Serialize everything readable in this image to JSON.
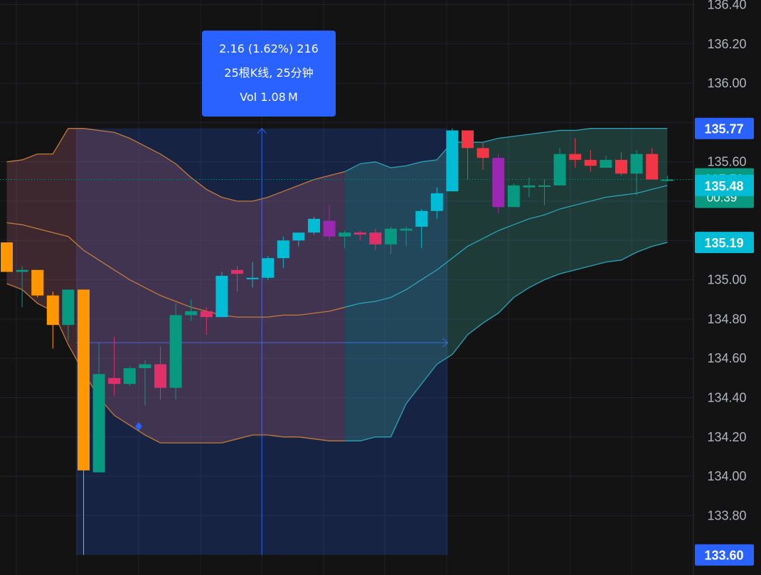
{
  "measure": {
    "change_text": "2.16 (1.62%) 216",
    "bars_text": "25根K线, 25分钟",
    "volume_text": "Vol 1.08 M"
  },
  "price_scale": {
    "ticks": [
      "136.40",
      "136.20",
      "136.00",
      "135.60",
      "135.00",
      "134.80",
      "134.60",
      "134.40",
      "134.20",
      "134.00",
      "133.80"
    ],
    "labels": [
      {
        "text": "135.77",
        "color": "#2962ff"
      },
      {
        "text": "135.51",
        "sub": "00:39",
        "color": "#089981"
      },
      {
        "text": "135.48",
        "color": "#00bcd4"
      },
      {
        "text": "135.19",
        "color": "#00bcd4"
      },
      {
        "text": "133.60",
        "color": "#2962ff"
      }
    ]
  },
  "colors": {
    "background": "#131313",
    "up": "#089981",
    "down": "#f23645",
    "measure_fill": "#2962ff",
    "band_warm": "#c27a3a",
    "band_cool": "#2aa3b8"
  },
  "chart_data": {
    "type": "candlestick",
    "y_range": [
      133.52,
      136.43
    ],
    "candles": [
      {
        "o": 135.19,
        "h": 135.19,
        "l": 135.04,
        "c": 135.04,
        "color": "#ff9800"
      },
      {
        "o": 135.04,
        "h": 135.07,
        "l": 134.86,
        "c": 135.05,
        "color": "#089981"
      },
      {
        "o": 135.05,
        "h": 135.05,
        "l": 134.91,
        "c": 134.92,
        "color": "#ff9800"
      },
      {
        "o": 134.92,
        "h": 134.94,
        "l": 134.65,
        "c": 134.77,
        "color": "#ff9800"
      },
      {
        "o": 134.77,
        "h": 134.93,
        "l": 134.69,
        "c": 134.95,
        "color": "#089981"
      },
      {
        "o": 134.95,
        "h": 134.95,
        "l": 133.6,
        "c": 134.03,
        "color": "#ff9800"
      },
      {
        "o": 134.02,
        "h": 134.68,
        "l": 134.02,
        "c": 134.52,
        "color": "#089981"
      },
      {
        "o": 134.5,
        "h": 134.71,
        "l": 134.41,
        "c": 134.47,
        "color": "#e0306a"
      },
      {
        "o": 134.47,
        "h": 134.56,
        "l": 134.46,
        "c": 134.55,
        "color": "#089981"
      },
      {
        "o": 134.55,
        "h": 134.59,
        "l": 134.36,
        "c": 134.57,
        "color": "#089981"
      },
      {
        "o": 134.57,
        "h": 134.66,
        "l": 134.39,
        "c": 134.45,
        "color": "#e0306a"
      },
      {
        "o": 134.45,
        "h": 134.88,
        "l": 134.39,
        "c": 134.82,
        "color": "#089981"
      },
      {
        "o": 134.82,
        "h": 134.9,
        "l": 134.79,
        "c": 134.84,
        "color": "#089981"
      },
      {
        "o": 134.84,
        "h": 134.86,
        "l": 134.72,
        "c": 134.81,
        "color": "#e0306a"
      },
      {
        "o": 134.81,
        "h": 135.04,
        "l": 134.81,
        "c": 135.02,
        "color": "#00bcd4"
      },
      {
        "o": 135.05,
        "h": 135.07,
        "l": 134.94,
        "c": 135.03,
        "color": "#e0306a"
      },
      {
        "o": 135.01,
        "h": 135.09,
        "l": 134.96,
        "c": 135.01,
        "color": "#00bcd4"
      },
      {
        "o": 135.01,
        "h": 135.12,
        "l": 135.0,
        "c": 135.11,
        "color": "#00bcd4"
      },
      {
        "o": 135.11,
        "h": 135.22,
        "l": 135.06,
        "c": 135.2,
        "color": "#00bcd4"
      },
      {
        "o": 135.2,
        "h": 135.24,
        "l": 135.17,
        "c": 135.24,
        "color": "#00bcd4"
      },
      {
        "o": 135.24,
        "h": 135.32,
        "l": 135.23,
        "c": 135.31,
        "color": "#00bcd4"
      },
      {
        "o": 135.3,
        "h": 135.38,
        "l": 135.2,
        "c": 135.22,
        "color": "#9c27b0"
      },
      {
        "o": 135.22,
        "h": 135.25,
        "l": 135.16,
        "c": 135.24,
        "color": "#089981"
      },
      {
        "o": 135.23,
        "h": 135.25,
        "l": 135.2,
        "c": 135.24,
        "color": "#e0306a"
      },
      {
        "o": 135.24,
        "h": 135.26,
        "l": 135.15,
        "c": 135.18,
        "color": "#e0306a"
      },
      {
        "o": 135.18,
        "h": 135.27,
        "l": 135.13,
        "c": 135.26,
        "color": "#089981"
      },
      {
        "o": 135.25,
        "h": 135.27,
        "l": 135.17,
        "c": 135.26,
        "color": "#089981"
      },
      {
        "o": 135.27,
        "h": 135.36,
        "l": 135.16,
        "c": 135.35,
        "color": "#00bcd4"
      },
      {
        "o": 135.35,
        "h": 135.47,
        "l": 135.31,
        "c": 135.44,
        "color": "#00bcd4"
      },
      {
        "o": 135.45,
        "h": 135.77,
        "l": 135.45,
        "c": 135.76,
        "color": "#00bcd4"
      },
      {
        "o": 135.76,
        "h": 135.76,
        "l": 135.51,
        "c": 135.67,
        "color": "#f23645"
      },
      {
        "o": 135.67,
        "h": 135.7,
        "l": 135.56,
        "c": 135.62,
        "color": "#f23645"
      },
      {
        "o": 135.62,
        "h": 135.64,
        "l": 135.34,
        "c": 135.37,
        "color": "#9c27b0"
      },
      {
        "o": 135.37,
        "h": 135.49,
        "l": 135.37,
        "c": 135.48,
        "color": "#089981"
      },
      {
        "o": 135.47,
        "h": 135.52,
        "l": 135.42,
        "c": 135.48,
        "color": "#089981"
      },
      {
        "o": 135.48,
        "h": 135.51,
        "l": 135.38,
        "c": 135.48,
        "color": "#089981"
      },
      {
        "o": 135.48,
        "h": 135.67,
        "l": 135.48,
        "c": 135.64,
        "color": "#089981"
      },
      {
        "o": 135.64,
        "h": 135.72,
        "l": 135.57,
        "c": 135.61,
        "color": "#f23645"
      },
      {
        "o": 135.61,
        "h": 135.66,
        "l": 135.55,
        "c": 135.58,
        "color": "#f23645"
      },
      {
        "o": 135.57,
        "h": 135.63,
        "l": 135.57,
        "c": 135.61,
        "color": "#089981"
      },
      {
        "o": 135.61,
        "h": 135.65,
        "l": 135.53,
        "c": 135.54,
        "color": "#f23645"
      },
      {
        "o": 135.54,
        "h": 135.66,
        "l": 135.43,
        "c": 135.64,
        "color": "#089981"
      },
      {
        "o": 135.64,
        "h": 135.67,
        "l": 135.51,
        "c": 135.51,
        "color": "#f23645"
      },
      {
        "o": 135.51,
        "h": 135.53,
        "l": 135.5,
        "c": 135.51,
        "color": "#089981"
      }
    ],
    "band_upper": [
      135.6,
      135.61,
      135.64,
      135.64,
      135.77,
      135.77,
      135.76,
      135.75,
      135.72,
      135.68,
      135.64,
      135.59,
      135.52,
      135.46,
      135.42,
      135.4,
      135.4,
      135.42,
      135.45,
      135.48,
      135.51,
      135.53,
      135.55,
      135.59,
      135.6,
      135.57,
      135.58,
      135.6,
      135.61,
      135.7,
      135.7,
      135.7,
      135.72,
      135.73,
      135.74,
      135.75,
      135.76,
      135.76,
      135.77,
      135.77,
      135.77,
      135.77,
      135.77,
      135.77
    ],
    "band_middle": [
      135.29,
      135.28,
      135.26,
      135.24,
      135.22,
      135.15,
      135.1,
      135.05,
      135.0,
      134.96,
      134.92,
      134.89,
      134.86,
      134.84,
      134.82,
      134.81,
      134.81,
      134.81,
      134.82,
      134.82,
      134.83,
      134.84,
      134.86,
      134.88,
      134.89,
      134.91,
      134.95,
      135.0,
      135.05,
      135.11,
      135.17,
      135.21,
      135.25,
      135.28,
      135.31,
      135.33,
      135.36,
      135.38,
      135.4,
      135.42,
      135.43,
      135.44,
      135.46,
      135.48
    ],
    "band_lower": [
      134.98,
      134.95,
      134.88,
      134.84,
      134.67,
      134.53,
      134.4,
      134.31,
      134.26,
      134.21,
      134.17,
      134.17,
      134.17,
      134.17,
      134.17,
      134.19,
      134.21,
      134.21,
      134.2,
      134.2,
      134.19,
      134.18,
      134.18,
      134.18,
      134.2,
      134.2,
      134.37,
      134.47,
      134.57,
      134.62,
      134.72,
      134.78,
      134.83,
      134.91,
      134.96,
      135.0,
      135.03,
      135.05,
      135.07,
      135.09,
      135.1,
      135.14,
      135.17,
      135.19
    ],
    "measure_range": {
      "from_price": 133.6,
      "to_price": 135.77,
      "from_bar": 5,
      "to_bar": 29
    }
  }
}
